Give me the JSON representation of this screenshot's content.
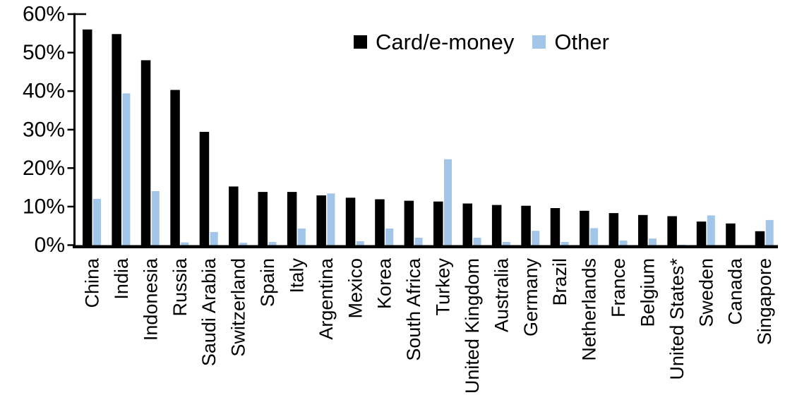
{
  "chart_data": {
    "type": "bar",
    "title": "",
    "categories": [
      "China",
      "India",
      "Indonesia",
      "Russia",
      "Saudi Arabia",
      "Switzerland",
      "Spain",
      "Italy",
      "Argentina",
      "Mexico",
      "Korea",
      "South Africa",
      "Turkey",
      "United Kingdom",
      "Australia",
      "Germany",
      "Brazil",
      "Netherlands",
      "France",
      "Belgium",
      "United States*",
      "Sweden",
      "Canada",
      "Singapore"
    ],
    "series": [
      {
        "name": "Card/e-money",
        "color": "#000000",
        "values": [
          56.2,
          55.0,
          48.2,
          40.5,
          29.6,
          15.4,
          14.0,
          14.0,
          13.1,
          12.5,
          12.1,
          11.7,
          11.5,
          11.0,
          10.6,
          10.4,
          9.8,
          9.1,
          8.5,
          8.0,
          7.7,
          6.3,
          5.8,
          3.8
        ]
      },
      {
        "name": "Other",
        "color": "#A3C6E8",
        "values": [
          12.2,
          39.6,
          14.2,
          0.9,
          3.6,
          0.8,
          1.0,
          4.5,
          13.6,
          1.2,
          4.5,
          2.1,
          22.5,
          2.1,
          1.0,
          3.9,
          1.0,
          4.6,
          1.4,
          1.9,
          0.3,
          7.9,
          0.0,
          6.7
        ]
      }
    ],
    "xlabel": "",
    "ylabel": "",
    "ylim": [
      0,
      60
    ],
    "yticks": [
      "0%",
      "10%",
      "20%",
      "30%",
      "40%",
      "50%",
      "60%"
    ],
    "grid": false,
    "legend_position": "top-center",
    "axis_color": "#000000",
    "background_color": "#ffffff"
  }
}
